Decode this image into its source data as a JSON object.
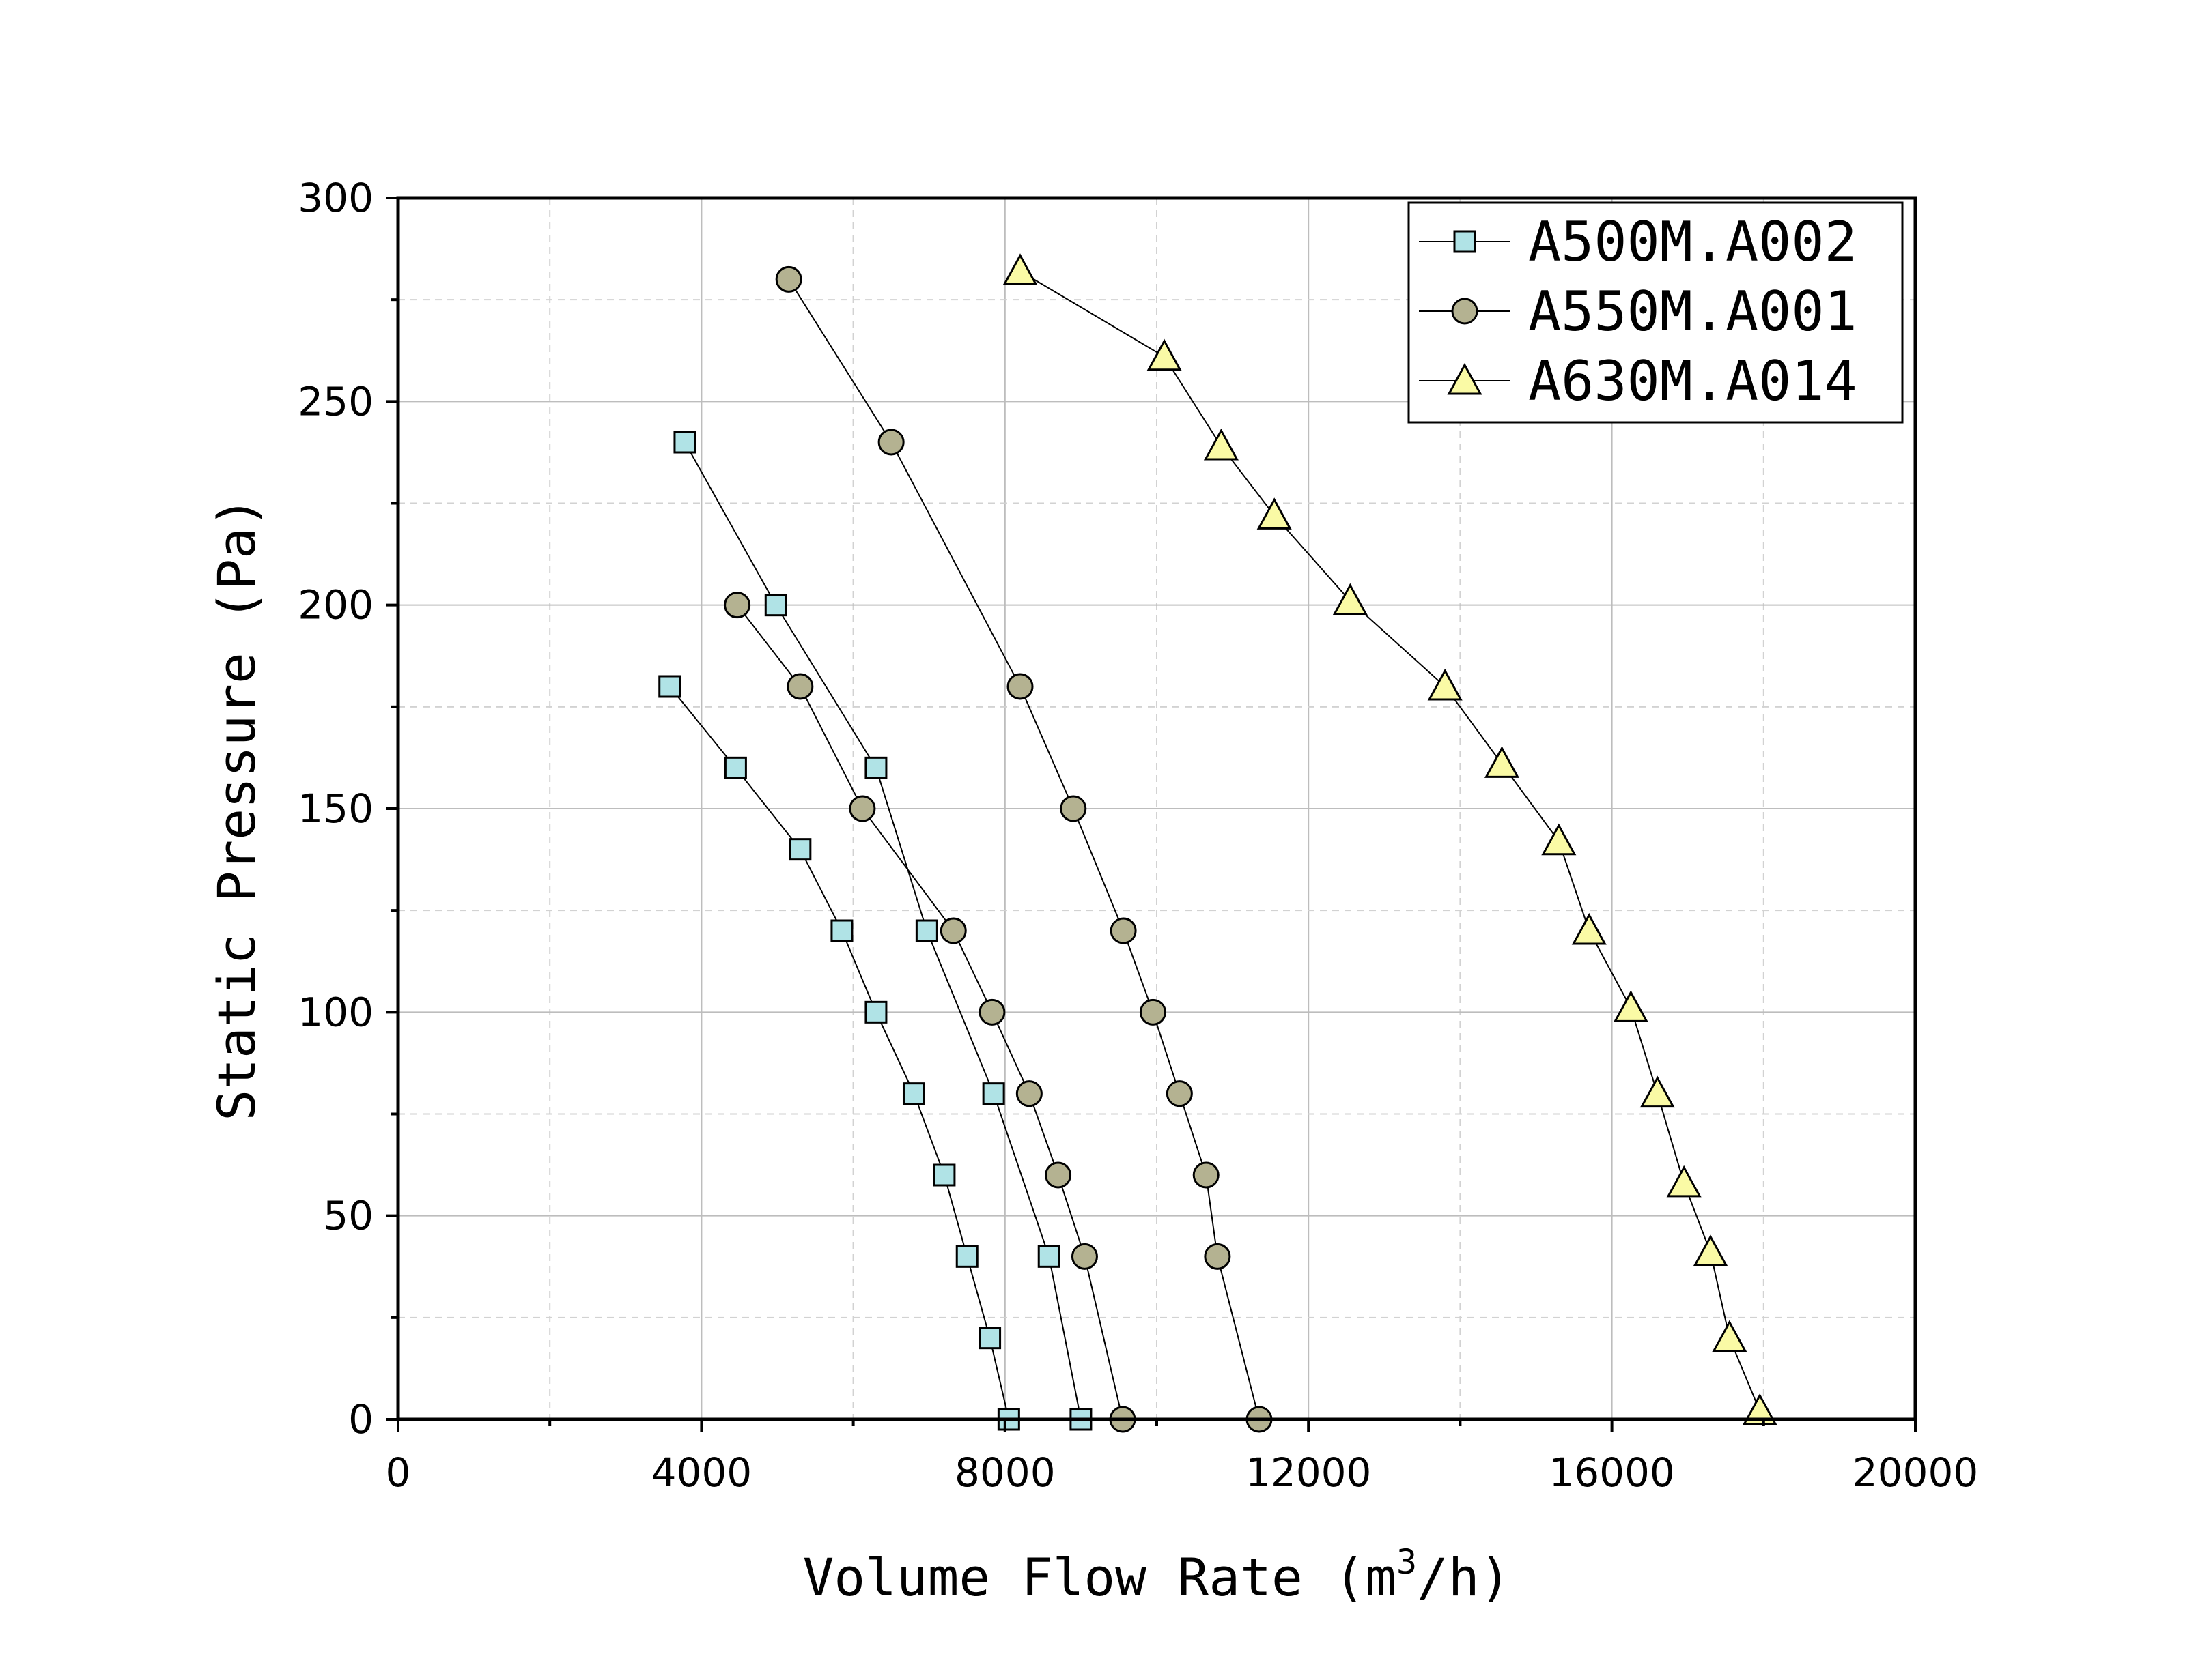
{
  "chart_data": {
    "type": "line",
    "title": "",
    "xlabel_main": "Volume Flow Rate (m",
    "xlabel_sup": "3",
    "xlabel_tail": "/h)",
    "ylabel": "Static Pressure (Pa)",
    "xlim": [
      0,
      20000
    ],
    "ylim": [
      0,
      300
    ],
    "x_ticks": [
      0,
      4000,
      8000,
      12000,
      16000,
      20000
    ],
    "x_tick_labels": [
      "0",
      "4000",
      "8000",
      "12000",
      "16000",
      "20000"
    ],
    "x_minor_ticks": [
      2000,
      6000,
      10000,
      14000,
      18000
    ],
    "y_ticks": [
      0,
      50,
      100,
      150,
      200,
      250,
      300
    ],
    "y_tick_labels": [
      "0",
      "50",
      "100",
      "150",
      "200",
      "250",
      "300"
    ],
    "y_minor_ticks": [
      25,
      75,
      125,
      175,
      225,
      275
    ],
    "grid": true,
    "legend_position": "top-right",
    "series": [
      {
        "name": "A500M.A002",
        "marker": "square",
        "color": "#b0e3e6",
        "curves": [
          {
            "x": [
              3580,
              4450,
              5300,
              5850,
              6300,
              6800,
              7200,
              7500,
              7800,
              8050
            ],
            "y": [
              180,
              160,
              140,
              120,
              100,
              80,
              60,
              40,
              20,
              0
            ]
          },
          {
            "x": [
              3780,
              4980,
              6300,
              6970,
              7850,
              8580,
              9000
            ],
            "y": [
              240,
              200,
              160,
              120,
              80,
              40,
              0
            ]
          }
        ]
      },
      {
        "name": "A550M.A001",
        "marker": "circle",
        "color": "#b4b291",
        "curves": [
          {
            "x": [
              4470,
              5300,
              6120,
              7320,
              7830,
              8320,
              8700,
              9050,
              9550
            ],
            "y": [
              200,
              180,
              150,
              120,
              100,
              80,
              60,
              40,
              0
            ]
          },
          {
            "x": [
              5150,
              6500,
              8200,
              8900,
              9560,
              9950,
              10300,
              10650,
              10800,
              11350
            ],
            "y": [
              280,
              240,
              180,
              150,
              120,
              100,
              80,
              60,
              40,
              0
            ]
          }
        ]
      },
      {
        "name": "A630M.A014",
        "marker": "triangle",
        "color": "#fafaa5",
        "curves": [
          {
            "x": [
              8200,
              10100,
              10850,
              11550,
              12550,
              13800,
              14550,
              15300,
              15700,
              16250,
              16600,
              16950,
              17300,
              17550,
              17950
            ],
            "y": [
              282,
              261,
              239,
              222,
              201,
              180,
              161,
              142,
              120,
              101,
              80,
              58,
              41,
              20,
              2
            ]
          }
        ]
      }
    ]
  }
}
